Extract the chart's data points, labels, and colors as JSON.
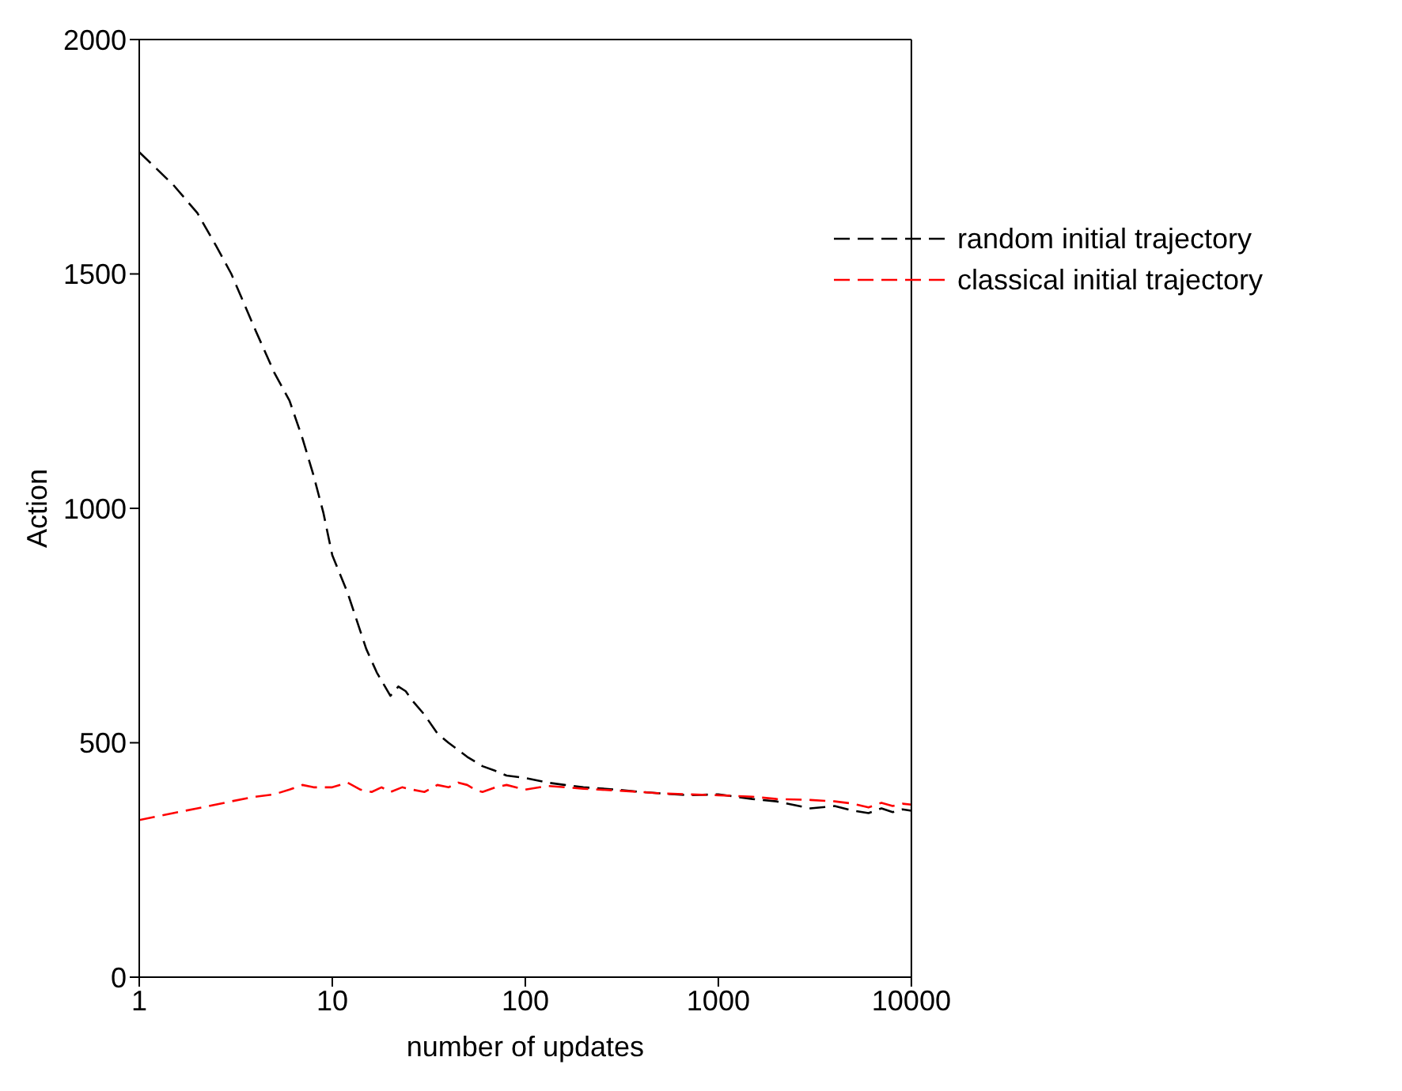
{
  "chart_data": {
    "type": "line",
    "xlabel": "number of updates",
    "ylabel": "Action",
    "log": "x",
    "xlim": [
      1,
      10000
    ],
    "xticks": [
      1,
      10,
      100,
      1000,
      10000
    ],
    "ylim": [
      0,
      2000
    ],
    "yticks": [
      0,
      500,
      1000,
      1500,
      2000
    ],
    "legend": "top right",
    "marker": "none",
    "series": [
      {
        "name": "random initial trajectory",
        "color": "#000000",
        "line_style": "dashed",
        "x": [
          1,
          1.5,
          2,
          2.5,
          3,
          4,
          5,
          6,
          7,
          8,
          9,
          10,
          12,
          15,
          17,
          20,
          22,
          24,
          26,
          30,
          35,
          40,
          50,
          60,
          70,
          80,
          100,
          130,
          160,
          200,
          300,
          400,
          500,
          700,
          1000,
          1500,
          2000,
          3000,
          4000,
          5000,
          6000,
          7000,
          8000,
          9000,
          10000
        ],
        "values": [
          1760,
          1690,
          1630,
          1560,
          1500,
          1380,
          1290,
          1230,
          1150,
          1070,
          990,
          900,
          820,
          700,
          650,
          600,
          620,
          610,
          590,
          560,
          520,
          500,
          470,
          450,
          440,
          430,
          425,
          415,
          410,
          405,
          400,
          395,
          392,
          388,
          390,
          380,
          375,
          360,
          365,
          355,
          350,
          360,
          352,
          358,
          355
        ]
      },
      {
        "name": "classical initial trajectory",
        "color": "#ff0000",
        "line_style": "dashed",
        "x": [
          1,
          1.5,
          2,
          3,
          4,
          5,
          6,
          7,
          8,
          10,
          12,
          14,
          16,
          18,
          20,
          23,
          26,
          30,
          35,
          40,
          45,
          50,
          55,
          60,
          70,
          80,
          100,
          130,
          160,
          200,
          300,
          400,
          500,
          700,
          1000,
          1500,
          2000,
          3000,
          4000,
          5000,
          6000,
          7000,
          8000,
          9000,
          10000
        ],
        "values": [
          335,
          350,
          360,
          375,
          385,
          390,
          400,
          410,
          405,
          405,
          415,
          400,
          395,
          405,
          395,
          405,
          400,
          395,
          410,
          405,
          415,
          410,
          400,
          395,
          405,
          410,
          400,
          408,
          405,
          402,
          398,
          395,
          392,
          390,
          388,
          385,
          380,
          378,
          375,
          370,
          362,
          372,
          365,
          370,
          368
        ]
      }
    ]
  }
}
